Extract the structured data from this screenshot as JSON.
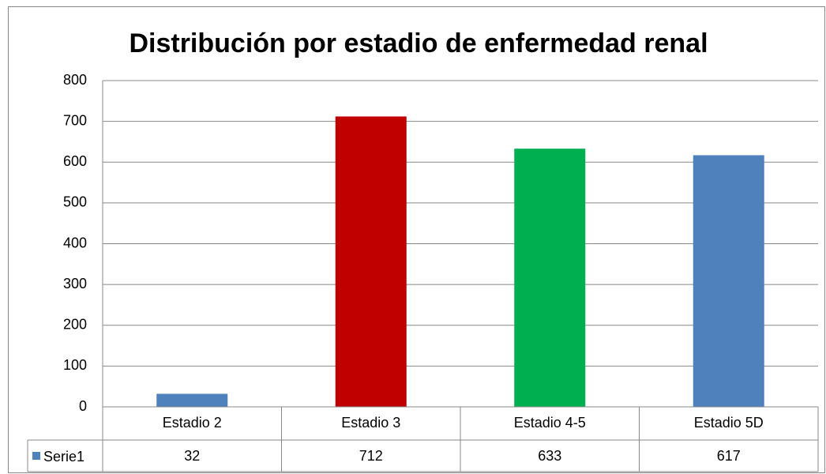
{
  "chart_data": {
    "type": "bar",
    "title": "Distribución por estadio de enfermedad renal",
    "categories": [
      "Estadio 2",
      "Estadio 3",
      "Estadio 4-5",
      "Estadio 5D"
    ],
    "series": [
      {
        "name": "Serie1",
        "color": "#4f81bd",
        "values": [
          32,
          712,
          633,
          617
        ],
        "colors": [
          "#4f81bd",
          "#c00000",
          "#00b050",
          "#4f81bd"
        ]
      }
    ],
    "ylim": [
      0,
      800
    ],
    "yticks": [
      0,
      100,
      200,
      300,
      400,
      500,
      600,
      700,
      800
    ],
    "grid": true,
    "legend": "table"
  }
}
